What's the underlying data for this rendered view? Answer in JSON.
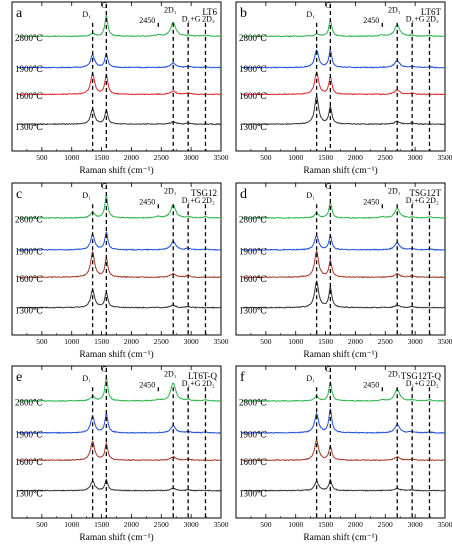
{
  "chart_data": [
    {
      "type": "line",
      "panel_letter": "a",
      "title": "LT6",
      "xlabel": "Raman shift (cm⁻¹)",
      "ylabel": "",
      "xlim": [
        0,
        3500
      ],
      "x_ticks": [
        "500",
        "1000",
        "1500",
        "2000",
        "2500",
        "3000",
        "3500"
      ],
      "series": [
        {
          "name": "2800℃",
          "color": "#2db34a",
          "peaks": [
            [
              1350,
              0.12
            ],
            [
              1580,
              0.9
            ],
            [
              2450,
              0.06
            ],
            [
              2700,
              0.6
            ],
            [
              2950,
              0.03
            ],
            [
              3240,
              0.05
            ]
          ]
        },
        {
          "name": "1900℃",
          "color": "#1f4fd8",
          "peaks": [
            [
              1350,
              0.55
            ],
            [
              1580,
              0.6
            ],
            [
              2700,
              0.2
            ],
            [
              2950,
              0.05
            ],
            [
              3240,
              0.03
            ]
          ]
        },
        {
          "name": "1600℃",
          "color": "#e0262c",
          "peaks": [
            [
              1350,
              0.9
            ],
            [
              1580,
              0.85
            ],
            [
              2700,
              0.15
            ],
            [
              2950,
              0.06
            ]
          ]
        },
        {
          "name": "1300℃",
          "color": "#333333",
          "peaks": [
            [
              1350,
              0.65
            ],
            [
              1580,
              0.6
            ],
            [
              2700,
              0.1
            ],
            [
              2950,
              0.04
            ]
          ]
        }
      ],
      "annotations": [
        {
          "text": "D₁",
          "x": 1350,
          "line": true
        },
        {
          "text": "G",
          "x": 1580,
          "line": true
        },
        {
          "text": "2450",
          "x": 2450,
          "line": true
        },
        {
          "text": "2D₁",
          "x": 2700,
          "line": true
        },
        {
          "text": "D₁+G",
          "x": 2950,
          "line": true
        },
        {
          "text": "2D₂",
          "x": 3240,
          "line": true
        }
      ]
    },
    {
      "type": "line",
      "panel_letter": "b",
      "title": "LT6T",
      "xlabel": "Raman shift (cm⁻¹)",
      "ylabel": "",
      "xlim": [
        0,
        3500
      ],
      "x_ticks": [
        "500",
        "1000",
        "1500",
        "2000",
        "2500",
        "3000",
        "3500"
      ],
      "series": [
        {
          "name": "2800℃",
          "color": "#2db34a",
          "peaks": [
            [
              1350,
              0.1
            ],
            [
              1580,
              0.7
            ],
            [
              2450,
              0.05
            ],
            [
              2700,
              0.5
            ],
            [
              2950,
              0.03
            ],
            [
              3240,
              0.04
            ]
          ]
        },
        {
          "name": "1900℃",
          "color": "#1f4fd8",
          "peaks": [
            [
              1350,
              0.75
            ],
            [
              1580,
              0.75
            ],
            [
              2700,
              0.3
            ],
            [
              2950,
              0.05
            ],
            [
              3240,
              0.03
            ]
          ]
        },
        {
          "name": "1600℃",
          "color": "#e0262c",
          "peaks": [
            [
              1350,
              0.95
            ],
            [
              1580,
              0.75
            ],
            [
              2700,
              0.2
            ],
            [
              2950,
              0.05
            ]
          ]
        },
        {
          "name": "1300℃",
          "color": "#333333",
          "peaks": [
            [
              1350,
              1.2
            ],
            [
              1580,
              0.75
            ],
            [
              2700,
              0.12
            ],
            [
              2950,
              0.05
            ]
          ]
        }
      ],
      "annotations": [
        {
          "text": "D₁",
          "x": 1350,
          "line": true
        },
        {
          "text": "G",
          "x": 1580,
          "line": true
        },
        {
          "text": "2450",
          "x": 2450,
          "line": true
        },
        {
          "text": "2D₁",
          "x": 2700,
          "line": true
        },
        {
          "text": "D₁+G",
          "x": 2950,
          "line": true
        },
        {
          "text": "2D₂",
          "x": 3240,
          "line": true
        }
      ]
    },
    {
      "type": "line",
      "panel_letter": "c",
      "title": "TSG12",
      "xlabel": "Raman shift (cm⁻¹)",
      "ylabel": "",
      "xlim": [
        0,
        3500
      ],
      "x_ticks": [
        "500",
        "1000",
        "1500",
        "2000",
        "2500",
        "3000",
        "3500"
      ],
      "series": [
        {
          "name": "2800℃",
          "color": "#2db34a",
          "peaks": [
            [
              1350,
              0.25
            ],
            [
              1580,
              0.95
            ],
            [
              2450,
              0.06
            ],
            [
              2700,
              0.55
            ],
            [
              2950,
              0.04
            ],
            [
              3240,
              0.05
            ]
          ]
        },
        {
          "name": "1900℃",
          "color": "#1f4fd8",
          "peaks": [
            [
              1350,
              0.65
            ],
            [
              1580,
              0.75
            ],
            [
              2700,
              0.35
            ],
            [
              2950,
              0.06
            ],
            [
              3240,
              0.03
            ]
          ]
        },
        {
          "name": "1600℃",
          "color": "#a33a2a",
          "peaks": [
            [
              1350,
              1.05
            ],
            [
              1580,
              0.8
            ],
            [
              2700,
              0.15
            ],
            [
              2950,
              0.06
            ]
          ]
        },
        {
          "name": "1300℃",
          "color": "#333333",
          "peaks": [
            [
              1350,
              0.75
            ],
            [
              1580,
              0.65
            ],
            [
              2700,
              0.1
            ],
            [
              2950,
              0.04
            ]
          ]
        }
      ],
      "annotations": [
        {
          "text": "D₁",
          "x": 1350,
          "line": true
        },
        {
          "text": "G",
          "x": 1580,
          "line": true
        },
        {
          "text": "2450",
          "x": 2450,
          "line": true
        },
        {
          "text": "2D₁",
          "x": 2700,
          "line": true
        },
        {
          "text": "D₁+G",
          "x": 2950,
          "line": true
        },
        {
          "text": "2D₂",
          "x": 3240,
          "line": true
        }
      ]
    },
    {
      "type": "line",
      "panel_letter": "d",
      "title": "TSG12T",
      "xlabel": "Raman shift (cm⁻¹)",
      "ylabel": "",
      "xlim": [
        0,
        3500
      ],
      "x_ticks": [
        "500",
        "1000",
        "1500",
        "2000",
        "2500",
        "3000",
        "3500"
      ],
      "series": [
        {
          "name": "2800℃",
          "color": "#2db34a",
          "peaks": [
            [
              1350,
              0.2
            ],
            [
              1580,
              0.65
            ],
            [
              2450,
              0.05
            ],
            [
              2700,
              0.4
            ],
            [
              2950,
              0.03
            ],
            [
              3240,
              0.04
            ]
          ]
        },
        {
          "name": "1900℃",
          "color": "#1f4fd8",
          "peaks": [
            [
              1350,
              0.6
            ],
            [
              1580,
              0.6
            ],
            [
              2700,
              0.3
            ],
            [
              2950,
              0.05
            ],
            [
              3240,
              0.03
            ]
          ]
        },
        {
          "name": "1600℃",
          "color": "#a33a2a",
          "peaks": [
            [
              1350,
              1.1
            ],
            [
              1580,
              0.7
            ],
            [
              2700,
              0.15
            ],
            [
              2950,
              0.05
            ]
          ]
        },
        {
          "name": "1300℃",
          "color": "#333333",
          "peaks": [
            [
              1350,
              1.1
            ],
            [
              1580,
              0.85
            ],
            [
              2700,
              0.1
            ],
            [
              2950,
              0.04
            ]
          ]
        }
      ],
      "annotations": [
        {
          "text": "D₁",
          "x": 1350,
          "line": true
        },
        {
          "text": "G",
          "x": 1580,
          "line": true
        },
        {
          "text": "2450",
          "x": 2450,
          "line": true
        },
        {
          "text": "2D₁",
          "x": 2700,
          "line": true
        },
        {
          "text": "D₁+G",
          "x": 2950,
          "line": true
        },
        {
          "text": "2D₂",
          "x": 3240,
          "line": true
        }
      ]
    },
    {
      "type": "line",
      "panel_letter": "e",
      "title": "LT6T-Q",
      "xlabel": "Raman shift (cm⁻¹)",
      "ylabel": "",
      "xlim": [
        0,
        3500
      ],
      "x_ticks": [
        "500",
        "1000",
        "1500",
        "2000",
        "2500",
        "3000",
        "3500"
      ],
      "series": [
        {
          "name": "2800℃",
          "color": "#2db34a",
          "peaks": [
            [
              1350,
              0.2
            ],
            [
              1580,
              1.0
            ],
            [
              2450,
              0.05
            ],
            [
              2700,
              0.75
            ],
            [
              2950,
              0.05
            ],
            [
              3240,
              0.05
            ]
          ]
        },
        {
          "name": "1900℃",
          "color": "#1f4fd8",
          "peaks": [
            [
              1350,
              0.7
            ],
            [
              1580,
              0.8
            ],
            [
              2700,
              0.3
            ],
            [
              2950,
              0.05
            ],
            [
              3240,
              0.03
            ]
          ]
        },
        {
          "name": "1600℃",
          "color": "#a33a2a",
          "peaks": [
            [
              1350,
              0.8
            ],
            [
              1580,
              0.7
            ],
            [
              2700,
              0.15
            ],
            [
              2950,
              0.05
            ]
          ]
        },
        {
          "name": "1300℃",
          "color": "#333333",
          "peaks": [
            [
              1350,
              0.4
            ],
            [
              1580,
              0.45
            ],
            [
              2700,
              0.1
            ],
            [
              2950,
              0.03
            ]
          ]
        }
      ],
      "annotations": [
        {
          "text": "D₁",
          "x": 1350,
          "line": true
        },
        {
          "text": "G",
          "x": 1580,
          "line": true
        },
        {
          "text": "2450",
          "x": 2450,
          "line": true
        },
        {
          "text": "2D₁",
          "x": 2700,
          "line": true
        },
        {
          "text": "D₁+G",
          "x": 2950,
          "line": true
        },
        {
          "text": "2D₂",
          "x": 3240,
          "line": true
        }
      ]
    },
    {
      "type": "line",
      "panel_letter": "f",
      "title": "TSG12T-Q",
      "xlabel": "Raman shift (cm⁻¹)",
      "ylabel": "",
      "xlim": [
        0,
        3500
      ],
      "x_ticks": [
        "500",
        "1000",
        "1500",
        "2000",
        "2500",
        "3000",
        "3500"
      ],
      "series": [
        {
          "name": "2800℃",
          "color": "#2db34a",
          "peaks": [
            [
              1350,
              0.2
            ],
            [
              1580,
              0.8
            ],
            [
              2450,
              0.05
            ],
            [
              2700,
              0.5
            ],
            [
              2950,
              0.04
            ],
            [
              3240,
              0.05
            ]
          ]
        },
        {
          "name": "1900℃",
          "color": "#1f4fd8",
          "peaks": [
            [
              1350,
              0.8
            ],
            [
              1580,
              1.0
            ],
            [
              2700,
              0.35
            ],
            [
              2950,
              0.05
            ],
            [
              3240,
              0.03
            ]
          ]
        },
        {
          "name": "1600℃",
          "color": "#a33a2a",
          "peaks": [
            [
              1350,
              0.85
            ],
            [
              1580,
              0.6
            ],
            [
              2700,
              0.15
            ],
            [
              2950,
              0.05
            ]
          ]
        },
        {
          "name": "1300℃",
          "color": "#333333",
          "peaks": [
            [
              1350,
              0.4
            ],
            [
              1580,
              0.45
            ],
            [
              2700,
              0.1
            ],
            [
              2950,
              0.03
            ]
          ]
        }
      ],
      "annotations": [
        {
          "text": "D₁",
          "x": 1350,
          "line": true
        },
        {
          "text": "G",
          "x": 1580,
          "line": true
        },
        {
          "text": "2450",
          "x": 2450,
          "line": true
        },
        {
          "text": "2D₁",
          "x": 2700,
          "line": true
        },
        {
          "text": "D₁+G",
          "x": 2950,
          "line": true
        },
        {
          "text": "2D₂",
          "x": 3240,
          "line": true
        }
      ]
    }
  ]
}
